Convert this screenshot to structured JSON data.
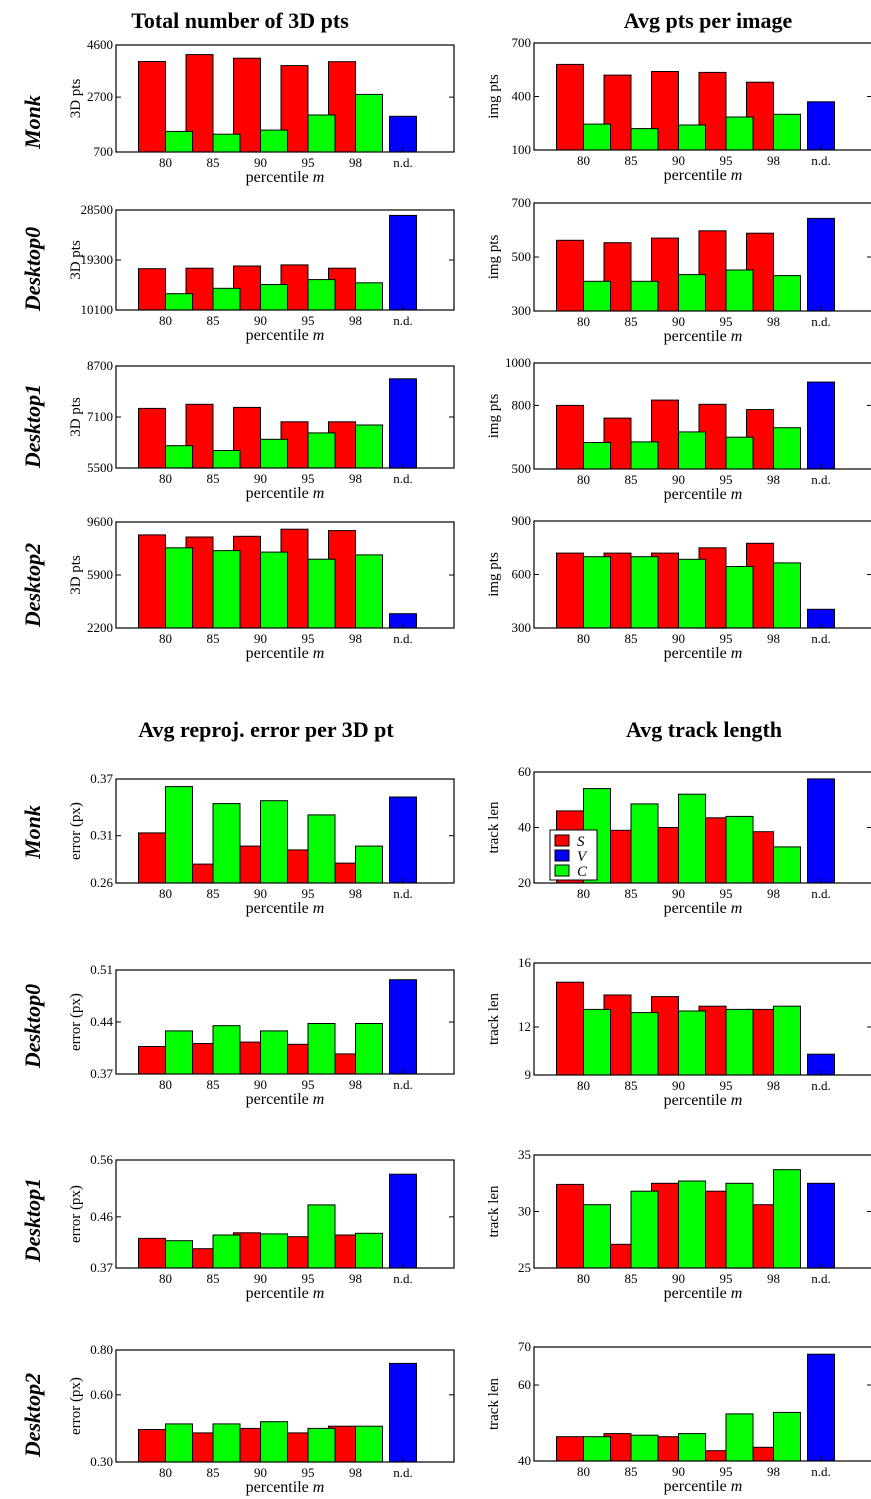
{
  "section_titles": [
    "Total number of 3D pts",
    "Avg pts per image",
    "Avg reproj. error per 3D pt",
    "Avg track length"
  ],
  "row_labels": [
    "Monk",
    "Desktop0",
    "Desktop1",
    "Desktop2"
  ],
  "legend": {
    "entries": [
      {
        "label": "S",
        "color": "#ff0000"
      },
      {
        "label": "V",
        "color": "#0000ff"
      },
      {
        "label": "C",
        "color": "#00ff00"
      }
    ],
    "placement": "in Monk 'Avg track length' panel, lower-left"
  },
  "colors": {
    "S": "#ff0000",
    "V": "#0000ff",
    "C": "#00ff00"
  },
  "chart_data": [
    {
      "type": "bar",
      "title": "Total number of 3D pts",
      "row": "Monk",
      "xlabel": "percentile m",
      "ylabel": "3D pts",
      "categories": [
        "80",
        "85",
        "90",
        "95",
        "98",
        "n.d."
      ],
      "ylim": [
        700,
        4600
      ],
      "yticks": [
        "700",
        "2700",
        "4600"
      ],
      "series": [
        {
          "name": "S",
          "values": [
            4000,
            4250,
            4120,
            3850,
            3990,
            null
          ]
        },
        {
          "name": "V",
          "values": [
            null,
            null,
            null,
            null,
            null,
            2000
          ]
        },
        {
          "name": "C",
          "values": [
            1450,
            1350,
            1500,
            2050,
            2800,
            null
          ]
        }
      ]
    },
    {
      "type": "bar",
      "title": "Avg pts per image",
      "row": "Monk",
      "xlabel": "percentile m",
      "ylabel": "img pts",
      "categories": [
        "80",
        "85",
        "90",
        "95",
        "98",
        "n.d."
      ],
      "ylim": [
        100,
        700
      ],
      "yticks": [
        "100",
        "400",
        "700"
      ],
      "series": [
        {
          "name": "S",
          "values": [
            580,
            520,
            540,
            535,
            480,
            null
          ]
        },
        {
          "name": "V",
          "values": [
            null,
            null,
            null,
            null,
            null,
            370
          ]
        },
        {
          "name": "C",
          "values": [
            245,
            220,
            240,
            285,
            300,
            null
          ]
        }
      ]
    },
    {
      "type": "bar",
      "title": "Total number of 3D pts",
      "row": "Desktop0",
      "xlabel": "percentile m",
      "ylabel": "3D pts",
      "categories": [
        "80",
        "85",
        "90",
        "95",
        "98",
        "n.d."
      ],
      "ylim": [
        10100,
        28500
      ],
      "yticks": [
        "10100",
        "19300",
        "28500"
      ],
      "series": [
        {
          "name": "S",
          "values": [
            17700,
            17800,
            18200,
            18400,
            17800,
            null
          ]
        },
        {
          "name": "V",
          "values": [
            null,
            null,
            null,
            null,
            null,
            27500
          ]
        },
        {
          "name": "C",
          "values": [
            13100,
            14100,
            14800,
            15700,
            15100,
            null
          ]
        }
      ]
    },
    {
      "type": "bar",
      "title": "Avg pts per image",
      "row": "Desktop0",
      "xlabel": "percentile m",
      "ylabel": "img pts",
      "categories": [
        "80",
        "85",
        "90",
        "95",
        "98",
        "n.d."
      ],
      "ylim": [
        300,
        700
      ],
      "yticks": [
        "300",
        "500",
        "700"
      ],
      "series": [
        {
          "name": "S",
          "values": [
            562,
            553,
            570,
            597,
            588,
            null
          ]
        },
        {
          "name": "V",
          "values": [
            null,
            null,
            null,
            null,
            null,
            643
          ]
        },
        {
          "name": "C",
          "values": [
            410,
            410,
            435,
            452,
            431,
            null
          ]
        }
      ]
    },
    {
      "type": "bar",
      "title": "Total number of 3D pts",
      "row": "Desktop1",
      "xlabel": "percentile m",
      "ylabel": "3D pts",
      "categories": [
        "80",
        "85",
        "90",
        "95",
        "98",
        "n.d."
      ],
      "ylim": [
        5500,
        8700
      ],
      "yticks": [
        "5500",
        "7100",
        "8700"
      ],
      "series": [
        {
          "name": "S",
          "values": [
            7370,
            7500,
            7400,
            6950,
            6950,
            null
          ]
        },
        {
          "name": "V",
          "values": [
            null,
            null,
            null,
            null,
            null,
            8300
          ]
        },
        {
          "name": "C",
          "values": [
            6200,
            6050,
            6400,
            6600,
            6850,
            null
          ]
        }
      ]
    },
    {
      "type": "bar",
      "title": "Avg pts per image",
      "row": "Desktop1",
      "xlabel": "percentile m",
      "ylabel": "img pts",
      "categories": [
        "80",
        "85",
        "90",
        "95",
        "98",
        "n.d."
      ],
      "ylim": [
        500,
        1000
      ],
      "yticks": [
        "500",
        "800",
        "1000"
      ],
      "series": [
        {
          "name": "S",
          "values": [
            800,
            740,
            825,
            805,
            780,
            null
          ]
        },
        {
          "name": "V",
          "values": [
            null,
            null,
            null,
            null,
            null,
            910
          ]
        },
        {
          "name": "C",
          "values": [
            625,
            628,
            675,
            650,
            695,
            null
          ]
        }
      ]
    },
    {
      "type": "bar",
      "title": "Total number of 3D pts",
      "row": "Desktop2",
      "xlabel": "percentile m",
      "ylabel": "3D pts",
      "categories": [
        "80",
        "85",
        "90",
        "95",
        "98",
        "n.d."
      ],
      "ylim": [
        2200,
        9600
      ],
      "yticks": [
        "2200",
        "5900",
        "9600"
      ],
      "series": [
        {
          "name": "S",
          "values": [
            8700,
            8550,
            8600,
            9100,
            9000,
            null
          ]
        },
        {
          "name": "V",
          "values": [
            null,
            null,
            null,
            null,
            null,
            3200
          ]
        },
        {
          "name": "C",
          "values": [
            7800,
            7600,
            7500,
            7000,
            7300,
            null
          ]
        }
      ]
    },
    {
      "type": "bar",
      "title": "Avg pts per image",
      "row": "Desktop2",
      "xlabel": "percentile m",
      "ylabel": "img pts",
      "categories": [
        "80",
        "85",
        "90",
        "95",
        "98",
        "n.d."
      ],
      "ylim": [
        300,
        900
      ],
      "yticks": [
        "300",
        "600",
        "900"
      ],
      "series": [
        {
          "name": "S",
          "values": [
            720,
            720,
            720,
            750,
            775,
            null
          ]
        },
        {
          "name": "V",
          "values": [
            null,
            null,
            null,
            null,
            null,
            405
          ]
        },
        {
          "name": "C",
          "values": [
            700,
            700,
            685,
            645,
            665,
            null
          ]
        }
      ]
    },
    {
      "type": "bar",
      "title": "Avg reproj. error per 3D pt",
      "row": "Monk",
      "xlabel": "percentile m",
      "ylabel": "error (px)",
      "categories": [
        "80",
        "85",
        "90",
        "95",
        "98",
        "n.d."
      ],
      "ylim": [
        0.26,
        0.37
      ],
      "yticks": [
        "0.26",
        "0.31",
        "0.37"
      ],
      "series": [
        {
          "name": "S",
          "values": [
            0.313,
            0.28,
            0.299,
            0.295,
            0.281,
            null
          ]
        },
        {
          "name": "V",
          "values": [
            null,
            null,
            null,
            null,
            null,
            0.351
          ]
        },
        {
          "name": "C",
          "values": [
            0.362,
            0.344,
            0.347,
            0.332,
            0.299,
            null
          ]
        }
      ]
    },
    {
      "type": "bar",
      "title": "Avg track length",
      "row": "Monk",
      "xlabel": "percentile m",
      "ylabel": "track len",
      "categories": [
        "80",
        "85",
        "90",
        "95",
        "98",
        "n.d."
      ],
      "ylim": [
        20,
        60
      ],
      "yticks": [
        "20",
        "40",
        "60"
      ],
      "series": [
        {
          "name": "S",
          "values": [
            46,
            39,
            40,
            43.5,
            38.5,
            null
          ]
        },
        {
          "name": "V",
          "values": [
            null,
            null,
            null,
            null,
            null,
            57.5
          ]
        },
        {
          "name": "C",
          "values": [
            54,
            48.5,
            52,
            44,
            33,
            null
          ]
        }
      ]
    },
    {
      "type": "bar",
      "title": "Avg reproj. error per 3D pt",
      "row": "Desktop0",
      "xlabel": "percentile m",
      "ylabel": "error (px)",
      "categories": [
        "80",
        "85",
        "90",
        "95",
        "98",
        "n.d."
      ],
      "ylim": [
        0.37,
        0.51
      ],
      "yticks": [
        "0.37",
        "0.44",
        "0.51"
      ],
      "series": [
        {
          "name": "S",
          "values": [
            0.407,
            0.411,
            0.413,
            0.41,
            0.397,
            null
          ]
        },
        {
          "name": "V",
          "values": [
            null,
            null,
            null,
            null,
            null,
            0.497
          ]
        },
        {
          "name": "C",
          "values": [
            0.428,
            0.435,
            0.428,
            0.438,
            0.438,
            null
          ]
        }
      ]
    },
    {
      "type": "bar",
      "title": "Avg track length",
      "row": "Desktop0",
      "xlabel": "percentile m",
      "ylabel": "track len",
      "categories": [
        "80",
        "85",
        "90",
        "95",
        "98",
        "n.d."
      ],
      "ylim": [
        9,
        16
      ],
      "yticks": [
        "9",
        "12",
        "16"
      ],
      "series": [
        {
          "name": "S",
          "values": [
            14.8,
            14.0,
            13.9,
            13.3,
            13.1,
            null
          ]
        },
        {
          "name": "V",
          "values": [
            null,
            null,
            null,
            null,
            null,
            10.3
          ]
        },
        {
          "name": "C",
          "values": [
            13.1,
            12.9,
            13.0,
            13.1,
            13.3,
            null
          ]
        }
      ]
    },
    {
      "type": "bar",
      "title": "Avg reproj. error per 3D pt",
      "row": "Desktop1",
      "xlabel": "percentile m",
      "ylabel": "error (px)",
      "categories": [
        "80",
        "85",
        "90",
        "95",
        "98",
        "n.d."
      ],
      "ylim": [
        0.37,
        0.56
      ],
      "yticks": [
        "0.37",
        "0.46",
        "0.56"
      ],
      "series": [
        {
          "name": "S",
          "values": [
            0.422,
            0.404,
            0.432,
            0.425,
            0.428,
            null
          ]
        },
        {
          "name": "V",
          "values": [
            null,
            null,
            null,
            null,
            null,
            0.535
          ]
        },
        {
          "name": "C",
          "values": [
            0.418,
            0.428,
            0.43,
            0.481,
            0.431,
            null
          ]
        }
      ]
    },
    {
      "type": "bar",
      "title": "Avg track length",
      "row": "Desktop1",
      "xlabel": "percentile m",
      "ylabel": "track len",
      "categories": [
        "80",
        "85",
        "90",
        "95",
        "98",
        "n.d."
      ],
      "ylim": [
        25,
        35
      ],
      "yticks": [
        "25",
        "30",
        "35"
      ],
      "series": [
        {
          "name": "S",
          "values": [
            32.4,
            27.1,
            32.5,
            31.8,
            30.6,
            null
          ]
        },
        {
          "name": "V",
          "values": [
            null,
            null,
            null,
            null,
            null,
            32.5
          ]
        },
        {
          "name": "C",
          "values": [
            30.6,
            31.8,
            32.7,
            32.5,
            33.7,
            null
          ]
        }
      ]
    },
    {
      "type": "bar",
      "title": "Avg reproj. error per 3D pt",
      "row": "Desktop2",
      "xlabel": "percentile m",
      "ylabel": "error (px)",
      "categories": [
        "80",
        "85",
        "90",
        "95",
        "98",
        "n.d."
      ],
      "ylim": [
        0.3,
        0.8
      ],
      "yticks": [
        "0.30",
        "0.60",
        "0.80"
      ],
      "series": [
        {
          "name": "S",
          "values": [
            0.445,
            0.43,
            0.45,
            0.43,
            0.46,
            null
          ]
        },
        {
          "name": "V",
          "values": [
            null,
            null,
            null,
            null,
            null,
            0.74
          ]
        },
        {
          "name": "C",
          "values": [
            0.47,
            0.47,
            0.48,
            0.45,
            0.46,
            null
          ]
        }
      ]
    },
    {
      "type": "bar",
      "title": "Avg track length",
      "row": "Desktop2",
      "xlabel": "percentile m",
      "ylabel": "track len",
      "categories": [
        "80",
        "85",
        "90",
        "95",
        "98",
        "n.d."
      ],
      "ylim": [
        40,
        70
      ],
      "yticks": [
        "40",
        "60",
        "70"
      ],
      "series": [
        {
          "name": "S",
          "values": [
            46.4,
            47.2,
            46.4,
            42.7,
            43.6,
            null
          ]
        },
        {
          "name": "V",
          "values": [
            null,
            null,
            null,
            null,
            null,
            68.1
          ]
        },
        {
          "name": "C",
          "values": [
            46.4,
            46.8,
            47.2,
            52.4,
            52.8,
            null
          ]
        }
      ]
    }
  ]
}
